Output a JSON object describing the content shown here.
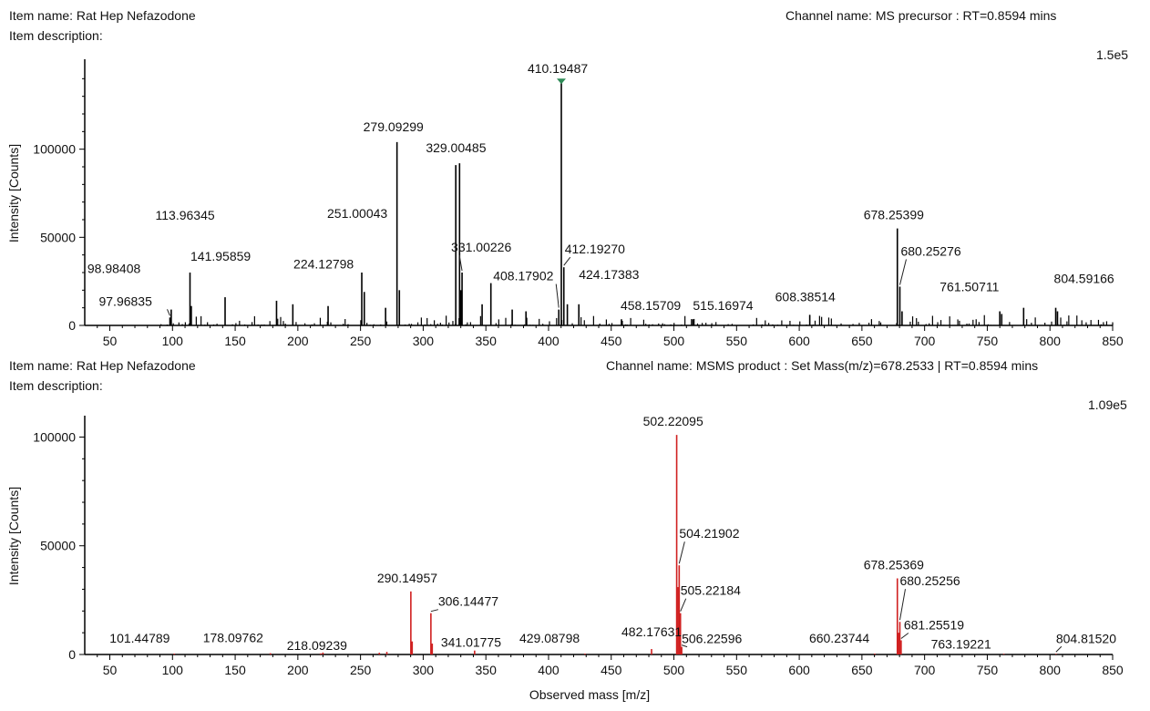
{
  "panels": [
    {
      "item_name": "Item name: Rat Hep Nefazodone",
      "item_description": "Item description:",
      "channel_name": "Channel name: MS precursor : RT=0.8594 mins",
      "max_label": "1.5e5"
    },
    {
      "item_name": "Item name: Rat Hep Nefazodone",
      "item_description": "Item description:",
      "channel_name": "Channel name: MSMS product : Set Mass(m/z)=678.2533 | RT=0.8594 mins",
      "max_label": "1.09e5"
    }
  ],
  "chart_data": [
    {
      "type": "bar",
      "title": "MS precursor",
      "color": "#000000",
      "marker_color": "#2e8b57",
      "xlabel": "",
      "ylabel": "Intensity [Counts]",
      "xlim": [
        30,
        850
      ],
      "ylim": [
        0,
        150000
      ],
      "x_ticks": [
        50,
        100,
        150,
        200,
        250,
        300,
        350,
        400,
        450,
        500,
        550,
        600,
        650,
        700,
        750,
        800,
        850
      ],
      "y_ticks": [
        0,
        50000,
        100000
      ],
      "peaks": [
        [
          97.96835,
          4500
        ],
        [
          98.98408,
          9000
        ],
        [
          113.96345,
          30000
        ],
        [
          141.95859,
          16000
        ],
        [
          224.12798,
          11000
        ],
        [
          251.00043,
          30000
        ],
        [
          279.09299,
          104000
        ],
        [
          329.00485,
          92000
        ],
        [
          331.00226,
          30000
        ],
        [
          408.17902,
          9000
        ],
        [
          410.19487,
          138000
        ],
        [
          412.1927,
          33000
        ],
        [
          424.17383,
          12000
        ],
        [
          458.15709,
          3500
        ],
        [
          515.16974,
          3500
        ],
        [
          608.38514,
          6000
        ],
        [
          678.25399,
          55000
        ],
        [
          680.25276,
          22000
        ],
        [
          761.50711,
          6500
        ],
        [
          804.59166,
          10000
        ],
        [
          326.0,
          91000
        ],
        [
          330.0,
          20000
        ],
        [
          253.0,
          19000
        ],
        [
          281.0,
          20000
        ],
        [
          354.0,
          24000
        ],
        [
          347.0,
          12000
        ],
        [
          415.0,
          12000
        ],
        [
          115.0,
          11000
        ],
        [
          183.0,
          14000
        ],
        [
          196.0,
          12000
        ],
        [
          270.0,
          10000
        ],
        [
          371.0,
          9000
        ],
        [
          382.0,
          8000
        ],
        [
          682.0,
          8000
        ],
        [
          779.0,
          10000
        ],
        [
          760.0,
          8000
        ],
        [
          806.0,
          8000
        ]
      ],
      "noise": {
        "from": 90,
        "to": 850,
        "step": 2.5,
        "max": 6000,
        "seed": 7
      },
      "labels": [
        {
          "mz": 97.96835,
          "text": "97.96835"
        },
        {
          "mz": 98.98408,
          "text": "98.98408"
        },
        {
          "mz": 113.96345,
          "text": "113.96345"
        },
        {
          "mz": 141.95859,
          "text": "141.95859"
        },
        {
          "mz": 224.12798,
          "text": "224.12798"
        },
        {
          "mz": 251.00043,
          "text": "251.00043"
        },
        {
          "mz": 279.09299,
          "text": "279.09299"
        },
        {
          "mz": 329.00485,
          "text": "329.00485"
        },
        {
          "mz": 331.00226,
          "text": "331.00226"
        },
        {
          "mz": 408.17902,
          "text": "408.17902"
        },
        {
          "mz": 410.19487,
          "text": "410.19487"
        },
        {
          "mz": 412.1927,
          "text": "412.19270"
        },
        {
          "mz": 424.17383,
          "text": "424.17383"
        },
        {
          "mz": 458.15709,
          "text": "458.15709"
        },
        {
          "mz": 515.16974,
          "text": "515.16974"
        },
        {
          "mz": 608.38514,
          "text": "608.38514"
        },
        {
          "mz": 678.25399,
          "text": "678.25399"
        },
        {
          "mz": 680.25276,
          "text": "680.25276"
        },
        {
          "mz": 761.50711,
          "text": "761.50711"
        },
        {
          "mz": 804.59166,
          "text": "804.59166"
        }
      ]
    },
    {
      "type": "bar",
      "title": "MSMS product",
      "color": "#d02020",
      "xlabel": "Observed mass [m/z]",
      "ylabel": "Intensity [Counts]",
      "xlim": [
        30,
        850
      ],
      "ylim": [
        0,
        109000
      ],
      "x_ticks": [
        50,
        100,
        150,
        200,
        250,
        300,
        350,
        400,
        450,
        500,
        550,
        600,
        650,
        700,
        750,
        800,
        850
      ],
      "y_ticks": [
        0,
        50000,
        100000
      ],
      "peaks": [
        [
          101.44789,
          400
        ],
        [
          178.09762,
          600
        ],
        [
          218.09239,
          500
        ],
        [
          290.14957,
          29000
        ],
        [
          306.14477,
          19000
        ],
        [
          341.01775,
          1800
        ],
        [
          429.08798,
          400
        ],
        [
          482.17631,
          2500
        ],
        [
          502.22095,
          101000
        ],
        [
          504.21902,
          41000
        ],
        [
          505.22184,
          19000
        ],
        [
          506.22596,
          3500
        ],
        [
          660.23744,
          400
        ],
        [
          678.25369,
          35000
        ],
        [
          680.25256,
          15000
        ],
        [
          681.25519,
          6500
        ],
        [
          763.19221,
          300
        ],
        [
          804.8152,
          300
        ],
        [
          503.2,
          31000
        ],
        [
          679.3,
          10000
        ],
        [
          307.2,
          5000
        ],
        [
          291.2,
          6000
        ],
        [
          271.0,
          1200
        ],
        [
          220.0,
          900
        ],
        [
          265.0,
          800
        ]
      ],
      "labels": [
        {
          "mz": 101.44789,
          "text": "101.44789"
        },
        {
          "mz": 178.09762,
          "text": "178.09762"
        },
        {
          "mz": 218.09239,
          "text": "218.09239"
        },
        {
          "mz": 290.14957,
          "text": "290.14957"
        },
        {
          "mz": 306.14477,
          "text": "306.14477"
        },
        {
          "mz": 341.01775,
          "text": "341.01775"
        },
        {
          "mz": 429.08798,
          "text": "429.08798"
        },
        {
          "mz": 482.17631,
          "text": "482.17631"
        },
        {
          "mz": 502.22095,
          "text": "502.22095"
        },
        {
          "mz": 504.21902,
          "text": "504.21902"
        },
        {
          "mz": 505.22184,
          "text": "505.22184"
        },
        {
          "mz": 506.22596,
          "text": "506.22596"
        },
        {
          "mz": 660.23744,
          "text": "660.23744"
        },
        {
          "mz": 678.25369,
          "text": "678.25369"
        },
        {
          "mz": 680.25256,
          "text": "680.25256"
        },
        {
          "mz": 681.25519,
          "text": "681.25519"
        },
        {
          "mz": 763.19221,
          "text": "763.19221"
        },
        {
          "mz": 804.8152,
          "text": "804.81520"
        }
      ]
    }
  ]
}
